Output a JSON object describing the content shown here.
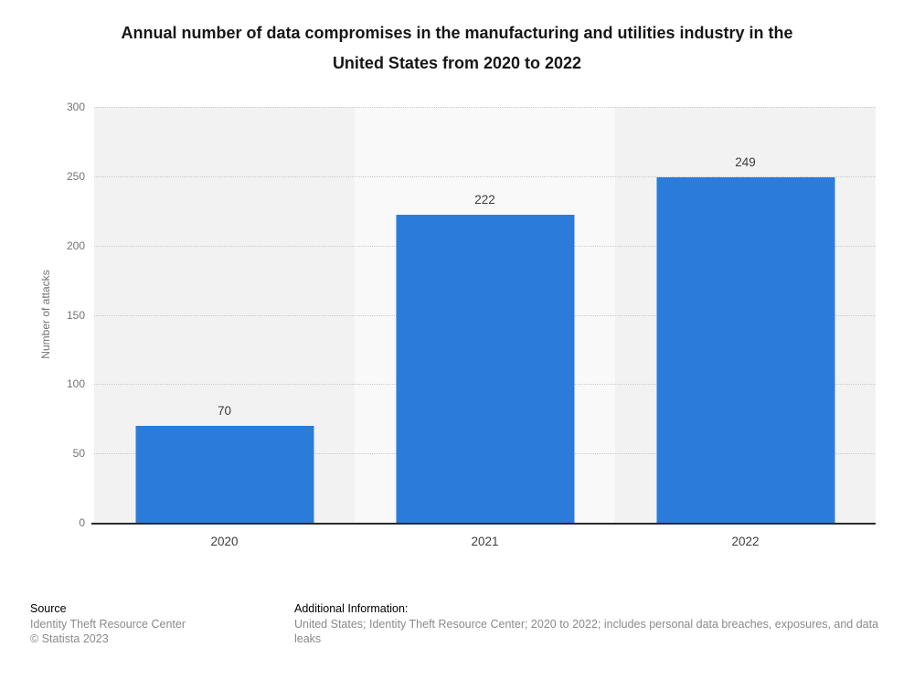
{
  "header": {
    "title_line1": "Annual number of data compromises in the manufacturing and utilities industry in the",
    "title_line2": "United States from 2020 to 2022"
  },
  "chart_data": {
    "type": "bar",
    "title": "Annual number of data compromises in the manufacturing and utilities industry in the United States from 2020 to 2022",
    "categories": [
      "2020",
      "2021",
      "2022"
    ],
    "values": [
      70,
      222,
      249
    ],
    "value_labels": [
      "70",
      "222",
      "249"
    ],
    "xlabel": "",
    "ylabel": "Number of attacks",
    "ylim": [
      0,
      300
    ],
    "yticks": [
      0,
      50,
      100,
      150,
      200,
      250,
      300
    ],
    "grid": "horizontal dotted",
    "legend": "none",
    "bar_color": "#2b7bdb",
    "plot_band_colors": [
      "#f2f2f2",
      "#f9f9f9",
      "#f2f2f2"
    ]
  },
  "footer": {
    "source_label": "Source",
    "source_name": "Identity Theft Resource Center",
    "copyright": "© Statista 2023",
    "additional_info_label": "Additional Information:",
    "additional_info_text": "United States; Identity Theft Resource Center; 2020 to 2022; includes personal data breaches, exposures, and data leaks"
  }
}
